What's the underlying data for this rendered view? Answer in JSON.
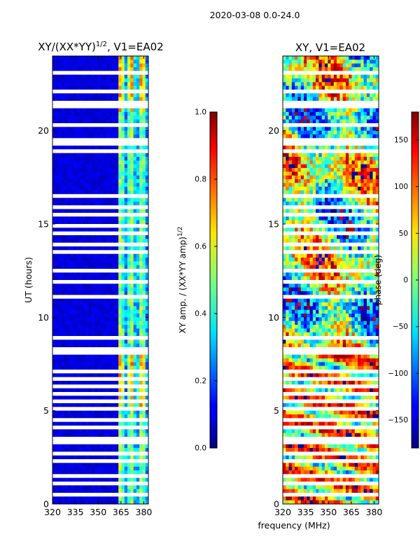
{
  "suptitle": "2020-03-08 0.0-24.0",
  "xlabel": "frequency (MHz)",
  "chart_data": [
    {
      "type": "heatmap",
      "title_main": "XY/(XX*YY)",
      "title_sup": "1/2",
      "title_tail": ", V1=EA02",
      "ylabel": "UT (hours)",
      "xlim": [
        320,
        383
      ],
      "ylim": [
        0,
        24
      ],
      "xticks": [
        320,
        335,
        350,
        365,
        380
      ],
      "yticks": [
        0,
        5,
        10,
        15,
        20
      ],
      "colorbar": {
        "label_main": "XY amp. / (XX*YY amp)",
        "label_sup": "1/2",
        "range": [
          0.0,
          1.0
        ],
        "ticks": [
          0.0,
          0.2,
          0.4,
          0.6,
          0.8,
          1.0
        ],
        "tick_labels": [
          "0.0",
          "0.2",
          "0.4",
          "0.6",
          "0.8",
          "1.0"
        ],
        "colormap": "jet"
      }
    },
    {
      "type": "heatmap",
      "title_main": "XY, V1=EA02",
      "ylabel": "",
      "xlim": [
        320,
        383
      ],
      "ylim": [
        0,
        24
      ],
      "xticks": [
        320,
        335,
        350,
        365,
        380
      ],
      "yticks": [
        0,
        5,
        10,
        15,
        20
      ],
      "colorbar": {
        "label_main": "phase (deg)",
        "range": [
          -180,
          180
        ],
        "ticks": [
          -150,
          -100,
          -50,
          0,
          50,
          100,
          150
        ],
        "tick_labels": [
          "−150",
          "−100",
          "−50",
          "0",
          "50",
          "100",
          "150"
        ],
        "colormap": "jet"
      }
    }
  ]
}
